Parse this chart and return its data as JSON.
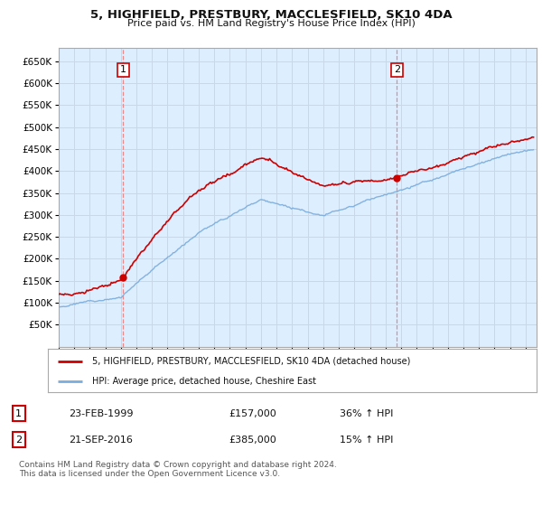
{
  "title": "5, HIGHFIELD, PRESTBURY, MACCLESFIELD, SK10 4DA",
  "subtitle": "Price paid vs. HM Land Registry's House Price Index (HPI)",
  "legend_line1": "5, HIGHFIELD, PRESTBURY, MACCLESFIELD, SK10 4DA (detached house)",
  "legend_line2": "HPI: Average price, detached house, Cheshire East",
  "annotation1_date": "23-FEB-1999",
  "annotation1_price": "£157,000",
  "annotation1_hpi": "36% ↑ HPI",
  "annotation1_year": 1999.15,
  "annotation1_value": 157000,
  "annotation2_date": "21-SEP-2016",
  "annotation2_price": "£385,000",
  "annotation2_hpi": "15% ↑ HPI",
  "annotation2_year": 2016.72,
  "annotation2_value": 385000,
  "hpi_color": "#7aacdc",
  "price_color": "#cc0000",
  "vline_color": "#ee8888",
  "plot_bg_color": "#ddeeff",
  "ylim": [
    0,
    680000
  ],
  "yticks": [
    50000,
    100000,
    150000,
    200000,
    250000,
    300000,
    350000,
    400000,
    450000,
    500000,
    550000,
    600000,
    650000
  ],
  "footer": "Contains HM Land Registry data © Crown copyright and database right 2024.\nThis data is licensed under the Open Government Licence v3.0.",
  "background_color": "#ffffff",
  "grid_color": "#c8d8e8"
}
